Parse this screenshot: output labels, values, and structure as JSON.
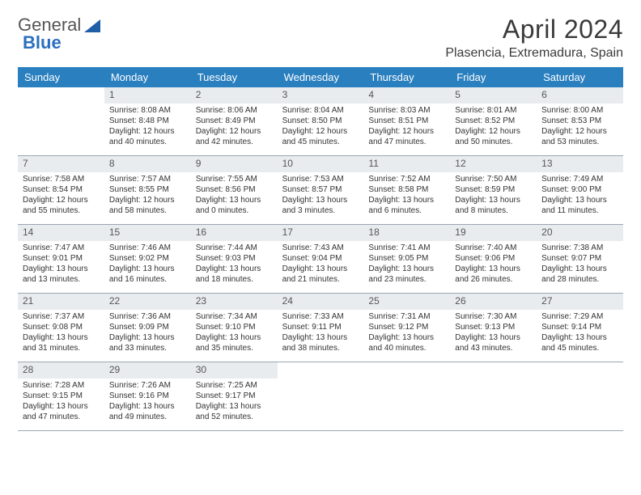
{
  "logo": {
    "general": "General",
    "blue": "Blue"
  },
  "title": {
    "month": "April 2024",
    "location": "Plasencia, Extremadura, Spain"
  },
  "header": {
    "days": [
      "Sunday",
      "Monday",
      "Tuesday",
      "Wednesday",
      "Thursday",
      "Friday",
      "Saturday"
    ],
    "bg": "#2a7fbf",
    "fg": "#ffffff"
  },
  "colors": {
    "daynum_bg": "#e9ecef",
    "rule": "#9aa6b2",
    "text": "#333333"
  },
  "weeks": [
    [
      null,
      {
        "n": "1",
        "sr": "Sunrise: 8:08 AM",
        "ss": "Sunset: 8:48 PM",
        "d1": "Daylight: 12 hours",
        "d2": "and 40 minutes."
      },
      {
        "n": "2",
        "sr": "Sunrise: 8:06 AM",
        "ss": "Sunset: 8:49 PM",
        "d1": "Daylight: 12 hours",
        "d2": "and 42 minutes."
      },
      {
        "n": "3",
        "sr": "Sunrise: 8:04 AM",
        "ss": "Sunset: 8:50 PM",
        "d1": "Daylight: 12 hours",
        "d2": "and 45 minutes."
      },
      {
        "n": "4",
        "sr": "Sunrise: 8:03 AM",
        "ss": "Sunset: 8:51 PM",
        "d1": "Daylight: 12 hours",
        "d2": "and 47 minutes."
      },
      {
        "n": "5",
        "sr": "Sunrise: 8:01 AM",
        "ss": "Sunset: 8:52 PM",
        "d1": "Daylight: 12 hours",
        "d2": "and 50 minutes."
      },
      {
        "n": "6",
        "sr": "Sunrise: 8:00 AM",
        "ss": "Sunset: 8:53 PM",
        "d1": "Daylight: 12 hours",
        "d2": "and 53 minutes."
      }
    ],
    [
      {
        "n": "7",
        "sr": "Sunrise: 7:58 AM",
        "ss": "Sunset: 8:54 PM",
        "d1": "Daylight: 12 hours",
        "d2": "and 55 minutes."
      },
      {
        "n": "8",
        "sr": "Sunrise: 7:57 AM",
        "ss": "Sunset: 8:55 PM",
        "d1": "Daylight: 12 hours",
        "d2": "and 58 minutes."
      },
      {
        "n": "9",
        "sr": "Sunrise: 7:55 AM",
        "ss": "Sunset: 8:56 PM",
        "d1": "Daylight: 13 hours",
        "d2": "and 0 minutes."
      },
      {
        "n": "10",
        "sr": "Sunrise: 7:53 AM",
        "ss": "Sunset: 8:57 PM",
        "d1": "Daylight: 13 hours",
        "d2": "and 3 minutes."
      },
      {
        "n": "11",
        "sr": "Sunrise: 7:52 AM",
        "ss": "Sunset: 8:58 PM",
        "d1": "Daylight: 13 hours",
        "d2": "and 6 minutes."
      },
      {
        "n": "12",
        "sr": "Sunrise: 7:50 AM",
        "ss": "Sunset: 8:59 PM",
        "d1": "Daylight: 13 hours",
        "d2": "and 8 minutes."
      },
      {
        "n": "13",
        "sr": "Sunrise: 7:49 AM",
        "ss": "Sunset: 9:00 PM",
        "d1": "Daylight: 13 hours",
        "d2": "and 11 minutes."
      }
    ],
    [
      {
        "n": "14",
        "sr": "Sunrise: 7:47 AM",
        "ss": "Sunset: 9:01 PM",
        "d1": "Daylight: 13 hours",
        "d2": "and 13 minutes."
      },
      {
        "n": "15",
        "sr": "Sunrise: 7:46 AM",
        "ss": "Sunset: 9:02 PM",
        "d1": "Daylight: 13 hours",
        "d2": "and 16 minutes."
      },
      {
        "n": "16",
        "sr": "Sunrise: 7:44 AM",
        "ss": "Sunset: 9:03 PM",
        "d1": "Daylight: 13 hours",
        "d2": "and 18 minutes."
      },
      {
        "n": "17",
        "sr": "Sunrise: 7:43 AM",
        "ss": "Sunset: 9:04 PM",
        "d1": "Daylight: 13 hours",
        "d2": "and 21 minutes."
      },
      {
        "n": "18",
        "sr": "Sunrise: 7:41 AM",
        "ss": "Sunset: 9:05 PM",
        "d1": "Daylight: 13 hours",
        "d2": "and 23 minutes."
      },
      {
        "n": "19",
        "sr": "Sunrise: 7:40 AM",
        "ss": "Sunset: 9:06 PM",
        "d1": "Daylight: 13 hours",
        "d2": "and 26 minutes."
      },
      {
        "n": "20",
        "sr": "Sunrise: 7:38 AM",
        "ss": "Sunset: 9:07 PM",
        "d1": "Daylight: 13 hours",
        "d2": "and 28 minutes."
      }
    ],
    [
      {
        "n": "21",
        "sr": "Sunrise: 7:37 AM",
        "ss": "Sunset: 9:08 PM",
        "d1": "Daylight: 13 hours",
        "d2": "and 31 minutes."
      },
      {
        "n": "22",
        "sr": "Sunrise: 7:36 AM",
        "ss": "Sunset: 9:09 PM",
        "d1": "Daylight: 13 hours",
        "d2": "and 33 minutes."
      },
      {
        "n": "23",
        "sr": "Sunrise: 7:34 AM",
        "ss": "Sunset: 9:10 PM",
        "d1": "Daylight: 13 hours",
        "d2": "and 35 minutes."
      },
      {
        "n": "24",
        "sr": "Sunrise: 7:33 AM",
        "ss": "Sunset: 9:11 PM",
        "d1": "Daylight: 13 hours",
        "d2": "and 38 minutes."
      },
      {
        "n": "25",
        "sr": "Sunrise: 7:31 AM",
        "ss": "Sunset: 9:12 PM",
        "d1": "Daylight: 13 hours",
        "d2": "and 40 minutes."
      },
      {
        "n": "26",
        "sr": "Sunrise: 7:30 AM",
        "ss": "Sunset: 9:13 PM",
        "d1": "Daylight: 13 hours",
        "d2": "and 43 minutes."
      },
      {
        "n": "27",
        "sr": "Sunrise: 7:29 AM",
        "ss": "Sunset: 9:14 PM",
        "d1": "Daylight: 13 hours",
        "d2": "and 45 minutes."
      }
    ],
    [
      {
        "n": "28",
        "sr": "Sunrise: 7:28 AM",
        "ss": "Sunset: 9:15 PM",
        "d1": "Daylight: 13 hours",
        "d2": "and 47 minutes."
      },
      {
        "n": "29",
        "sr": "Sunrise: 7:26 AM",
        "ss": "Sunset: 9:16 PM",
        "d1": "Daylight: 13 hours",
        "d2": "and 49 minutes."
      },
      {
        "n": "30",
        "sr": "Sunrise: 7:25 AM",
        "ss": "Sunset: 9:17 PM",
        "d1": "Daylight: 13 hours",
        "d2": "and 52 minutes."
      },
      null,
      null,
      null,
      null
    ]
  ]
}
